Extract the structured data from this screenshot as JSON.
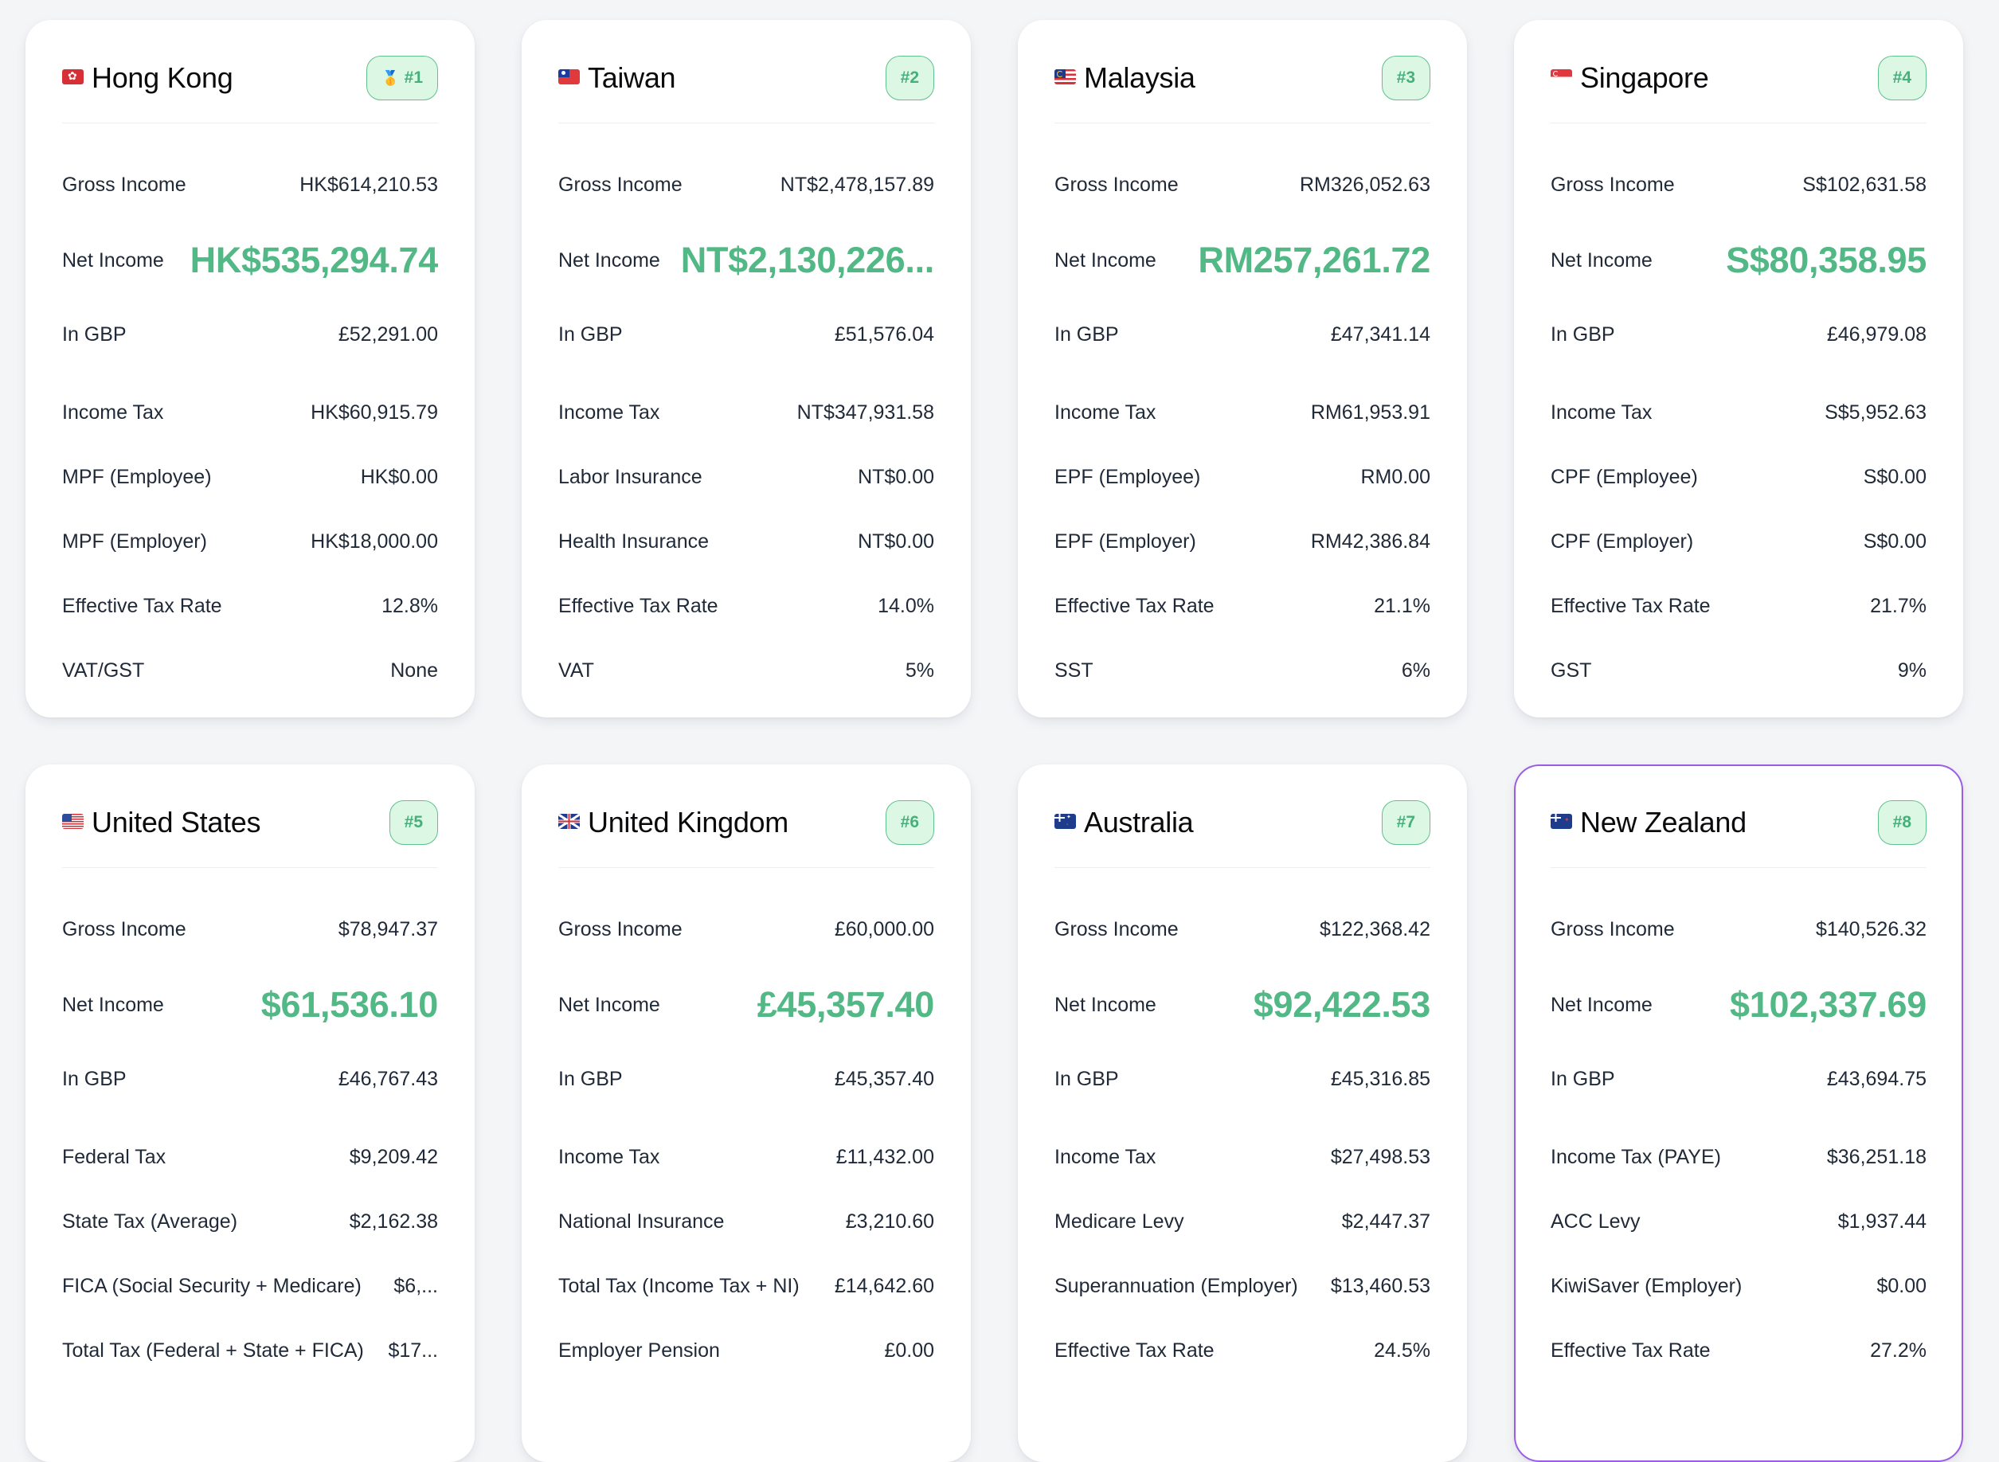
{
  "accent_colors": {
    "net_income": "#52b886",
    "badge_bg": "#dcf7e4",
    "badge_border": "#5fc28d",
    "badge_text": "#46b07a",
    "hover_border": "#9b5de5",
    "page_bg": "#f4f5f7"
  },
  "cards": [
    {
      "country": "Hong Kong",
      "flag": "hk-flag",
      "rank": "#1",
      "medal": "🥇",
      "gross_label": "Gross Income",
      "gross": "HK$614,210.53",
      "net_label": "Net Income",
      "net": "HK$535,294.74",
      "gbp_label": "In GBP",
      "gbp": "£52,291.00",
      "rows": [
        {
          "label": "Income Tax",
          "value": "HK$60,915.79"
        },
        {
          "label": "MPF (Employee)",
          "value": "HK$0.00"
        },
        {
          "label": "MPF (Employer)",
          "value": "HK$18,000.00"
        },
        {
          "label": "Effective Tax Rate",
          "value": "12.8%"
        },
        {
          "label": "VAT/GST",
          "value": "None"
        }
      ]
    },
    {
      "country": "Taiwan",
      "flag": "tw-flag",
      "rank": "#2",
      "medal": "",
      "gross_label": "Gross Income",
      "gross": "NT$2,478,157.89",
      "net_label": "Net Income",
      "net": "NT$2,130,226...",
      "gbp_label": "In GBP",
      "gbp": "£51,576.04",
      "rows": [
        {
          "label": "Income Tax",
          "value": "NT$347,931.58"
        },
        {
          "label": "Labor Insurance",
          "value": "NT$0.00"
        },
        {
          "label": "Health Insurance",
          "value": "NT$0.00"
        },
        {
          "label": "Effective Tax Rate",
          "value": "14.0%"
        },
        {
          "label": "VAT",
          "value": "5%"
        }
      ]
    },
    {
      "country": "Malaysia",
      "flag": "my-flag",
      "rank": "#3",
      "medal": "",
      "gross_label": "Gross Income",
      "gross": "RM326,052.63",
      "net_label": "Net Income",
      "net": "RM257,261.72",
      "gbp_label": "In GBP",
      "gbp": "£47,341.14",
      "rows": [
        {
          "label": "Income Tax",
          "value": "RM61,953.91"
        },
        {
          "label": "EPF (Employee)",
          "value": "RM0.00"
        },
        {
          "label": "EPF (Employer)",
          "value": "RM42,386.84"
        },
        {
          "label": "Effective Tax Rate",
          "value": "21.1%"
        },
        {
          "label": "SST",
          "value": "6%"
        }
      ]
    },
    {
      "country": "Singapore",
      "flag": "sg-flag",
      "rank": "#4",
      "medal": "",
      "gross_label": "Gross Income",
      "gross": "S$102,631.58",
      "net_label": "Net Income",
      "net": "S$80,358.95",
      "gbp_label": "In GBP",
      "gbp": "£46,979.08",
      "rows": [
        {
          "label": "Income Tax",
          "value": "S$5,952.63"
        },
        {
          "label": "CPF (Employee)",
          "value": "S$0.00"
        },
        {
          "label": "CPF (Employer)",
          "value": "S$0.00"
        },
        {
          "label": "Effective Tax Rate",
          "value": "21.7%"
        },
        {
          "label": "GST",
          "value": "9%"
        }
      ]
    },
    {
      "country": "United States",
      "flag": "us-flag",
      "rank": "#5",
      "medal": "",
      "gross_label": "Gross Income",
      "gross": "$78,947.37",
      "net_label": "Net Income",
      "net": "$61,536.10",
      "gbp_label": "In GBP",
      "gbp": "£46,767.43",
      "rows": [
        {
          "label": "Federal Tax",
          "value": "$9,209.42"
        },
        {
          "label": "State Tax (Average)",
          "value": "$2,162.38"
        },
        {
          "label": "FICA (Social Security + Medicare)",
          "value": "$6,..."
        },
        {
          "label": "Total Tax (Federal + State + FICA)",
          "value": "$17..."
        }
      ]
    },
    {
      "country": "United Kingdom",
      "flag": "uk-flag",
      "rank": "#6",
      "medal": "",
      "gross_label": "Gross Income",
      "gross": "£60,000.00",
      "net_label": "Net Income",
      "net": "£45,357.40",
      "gbp_label": "In GBP",
      "gbp": "£45,357.40",
      "rows": [
        {
          "label": "Income Tax",
          "value": "£11,432.00"
        },
        {
          "label": "National Insurance",
          "value": "£3,210.60"
        },
        {
          "label": "Total Tax (Income Tax + NI)",
          "value": "£14,642.60"
        },
        {
          "label": "Employer Pension",
          "value": "£0.00"
        }
      ]
    },
    {
      "country": "Australia",
      "flag": "au-flag",
      "rank": "#7",
      "medal": "",
      "gross_label": "Gross Income",
      "gross": "$122,368.42",
      "net_label": "Net Income",
      "net": "$92,422.53",
      "gbp_label": "In GBP",
      "gbp": "£45,316.85",
      "rows": [
        {
          "label": "Income Tax",
          "value": "$27,498.53"
        },
        {
          "label": "Medicare Levy",
          "value": "$2,447.37"
        },
        {
          "label": "Superannuation (Employer)",
          "value": "$13,460.53"
        },
        {
          "label": "Effective Tax Rate",
          "value": "24.5%"
        }
      ]
    },
    {
      "country": "New Zealand",
      "flag": "nz-flag",
      "rank": "#8",
      "medal": "",
      "gross_label": "Gross Income",
      "gross": "$140,526.32",
      "net_label": "Net Income",
      "net": "$102,337.69",
      "gbp_label": "In GBP",
      "gbp": "£43,694.75",
      "rows": [
        {
          "label": "Income Tax (PAYE)",
          "value": "$36,251.18"
        },
        {
          "label": "ACC Levy",
          "value": "$1,937.44"
        },
        {
          "label": "KiwiSaver (Employer)",
          "value": "$0.00"
        },
        {
          "label": "Effective Tax Rate",
          "value": "27.2%"
        }
      ]
    }
  ]
}
